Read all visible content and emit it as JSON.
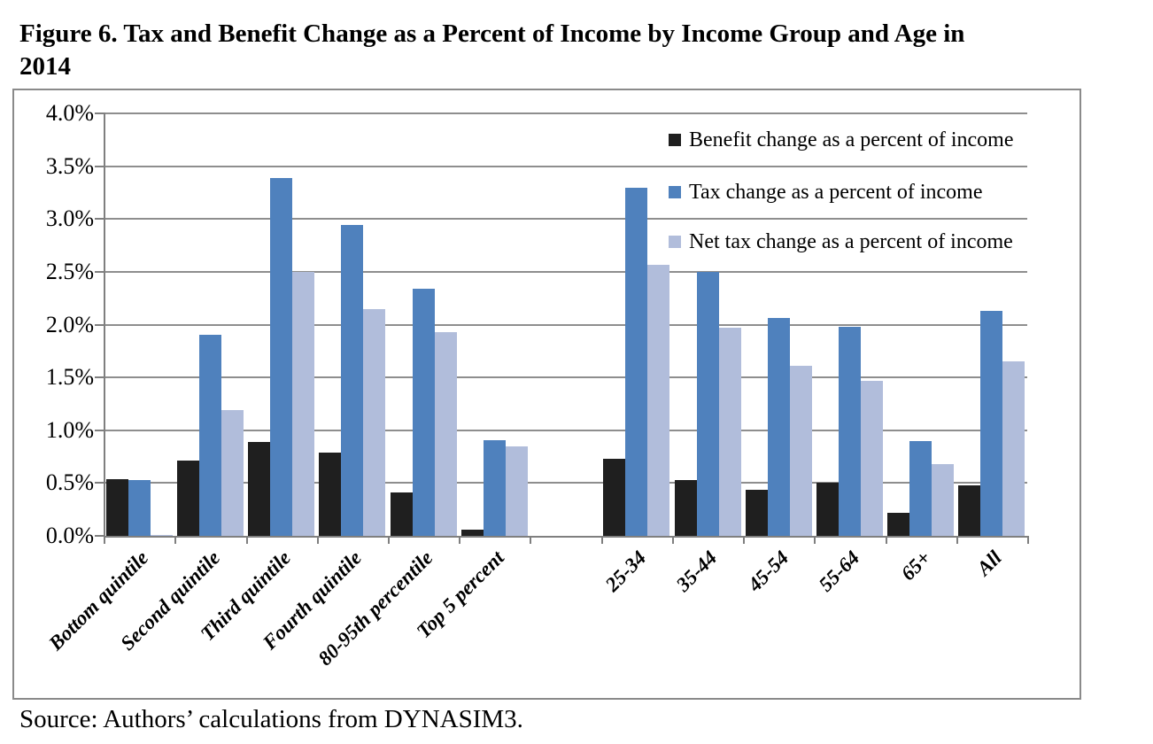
{
  "header": {
    "title_lines": [
      "Figure 6. Tax and Benefit Change as a Percent of Income by Income Group and Age in",
      "2014"
    ]
  },
  "footer": {
    "source": "Source: Authors’ calculations from DYNASIM3."
  },
  "colors": {
    "benefit": "#1f1f1f",
    "tax": "#4f81bd",
    "net": "#b1bddb",
    "gridline": "#8e8e8e",
    "axis": "#7f7f7f",
    "frame_border": "#8a8a8a"
  },
  "chart_data": {
    "type": "bar",
    "title": "Figure 6. Tax and Benefit Change as a Percent of Income by Income Group and Age in 2014",
    "categories": [
      "Bottom quintile",
      "Second quintile",
      "Third quintile",
      "Fourth quintile",
      "80-95th percentile",
      "Top 5 percent",
      "",
      "25-34",
      "35-44",
      "45-54",
      "55-64",
      "65+",
      "All"
    ],
    "series": [
      {
        "key": "benefit",
        "name": "Benefit change as a percent of income",
        "color": "#1f1f1f",
        "values": [
          0.54,
          0.71,
          0.89,
          0.79,
          0.41,
          0.06,
          null,
          0.73,
          0.53,
          0.44,
          0.5,
          0.22,
          0.48
        ]
      },
      {
        "key": "tax",
        "name": "Tax change as a percent of income",
        "color": "#4f81bd",
        "values": [
          0.53,
          1.9,
          3.39,
          2.94,
          2.34,
          0.91,
          null,
          3.3,
          2.5,
          2.06,
          1.98,
          0.9,
          2.13
        ]
      },
      {
        "key": "net",
        "name": "Net tax change as a percent of income",
        "color": "#b1bddb",
        "values": [
          0.01,
          1.19,
          2.5,
          2.15,
          1.93,
          0.85,
          null,
          2.57,
          1.97,
          1.61,
          1.47,
          0.68,
          1.65
        ]
      }
    ],
    "xlabel": "",
    "ylabel": "",
    "ylim": [
      0,
      4.0
    ],
    "ytick_step": 0.5,
    "ytick_labels": [
      "0.0%",
      "0.5%",
      "1.0%",
      "1.5%",
      "2.0%",
      "2.5%",
      "3.0%",
      "3.5%",
      "4.0%"
    ],
    "grid": true,
    "legend_position": "inside-top-right"
  }
}
